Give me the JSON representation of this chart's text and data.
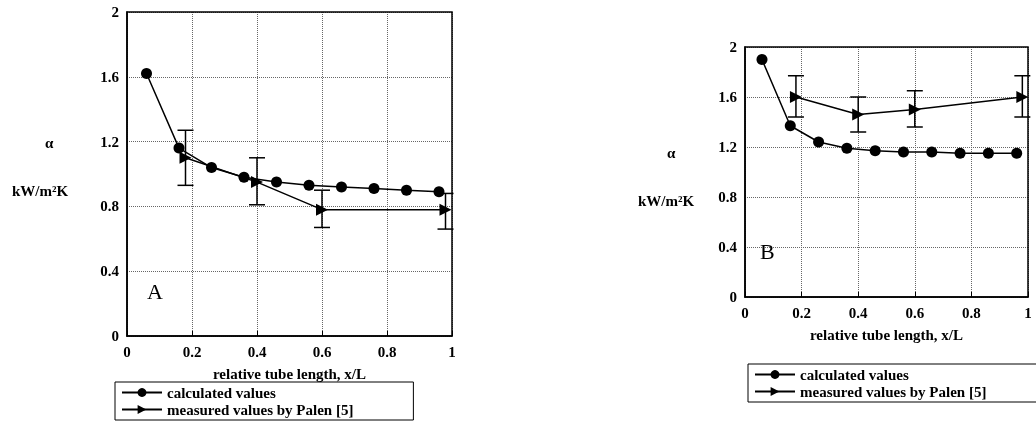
{
  "chart_data": [
    {
      "type": "line",
      "xlabel": "relative tube length, x/L",
      "ylabel": "α kW/m²K",
      "xlim": [
        0,
        1
      ],
      "xticks": [
        0,
        0.2,
        0.4,
        0.6,
        0.8,
        1
      ],
      "ylim": [
        0,
        2
      ],
      "yticks": [
        0,
        0.4,
        0.8,
        1.2,
        1.6,
        2
      ],
      "grid": true,
      "legend": "bottom",
      "annotations": [
        "A"
      ],
      "series": [
        {
          "name": "calculated values",
          "color": "#000000",
          "marker": "circle",
          "x": [
            0.06,
            0.16,
            0.26,
            0.36,
            0.46,
            0.56,
            0.66,
            0.76,
            0.86,
            0.96
          ],
          "values": [
            1.62,
            1.16,
            1.04,
            0.98,
            0.95,
            0.93,
            0.92,
            0.91,
            0.9,
            0.89
          ]
        },
        {
          "name": "measured values by Palen [5]",
          "color": "#000000",
          "marker": "triangle",
          "x": [
            0.18,
            0.4,
            0.6,
            0.98
          ],
          "values": [
            1.1,
            0.95,
            0.78,
            0.78
          ],
          "errors": [
            [
              0.93,
              1.27
            ],
            [
              0.81,
              1.1
            ],
            [
              0.67,
              0.9
            ],
            [
              0.66,
              0.88
            ]
          ]
        }
      ]
    },
    {
      "type": "line",
      "xlabel": "relative tube length, x/L",
      "ylabel": "α kW/m²K",
      "xlim": [
        0,
        1
      ],
      "xticks": [
        0,
        0.2,
        0.4,
        0.6,
        0.8,
        1
      ],
      "ylim": [
        0,
        2
      ],
      "yticks": [
        0,
        0.4,
        0.8,
        1.2,
        1.6,
        2
      ],
      "grid": true,
      "legend": "bottom",
      "annotations": [
        "B"
      ],
      "series": [
        {
          "name": "calculated values",
          "color": "#000000",
          "marker": "circle",
          "x": [
            0.06,
            0.16,
            0.26,
            0.36,
            0.46,
            0.56,
            0.66,
            0.76,
            0.86,
            0.96
          ],
          "values": [
            1.9,
            1.37,
            1.24,
            1.19,
            1.17,
            1.16,
            1.16,
            1.15,
            1.15,
            1.15
          ]
        },
        {
          "name": "measured values by Palen [5]",
          "color": "#000000",
          "marker": "triangle",
          "x": [
            0.18,
            0.4,
            0.6,
            0.98
          ],
          "values": [
            1.6,
            1.46,
            1.5,
            1.6
          ],
          "errors": [
            [
              1.44,
              1.77
            ],
            [
              1.32,
              1.6
            ],
            [
              1.36,
              1.65
            ],
            [
              1.44,
              1.77
            ]
          ]
        }
      ]
    }
  ]
}
